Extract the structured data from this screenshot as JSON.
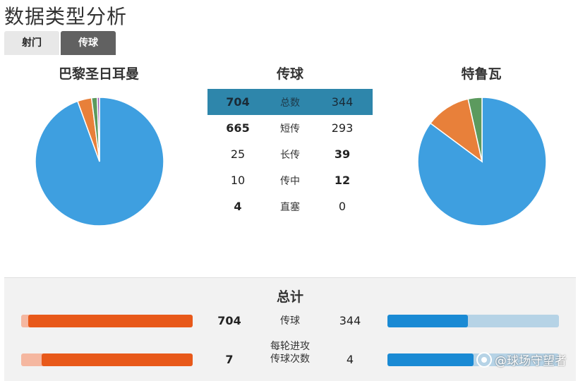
{
  "page": {
    "title": "数据类型分析"
  },
  "tabs": [
    {
      "label": "射门",
      "active": false
    },
    {
      "label": "传球",
      "active": true
    }
  ],
  "teams": {
    "left": "巴黎圣日耳曼",
    "right": "特鲁瓦"
  },
  "section_title": "传球",
  "colors": {
    "short": "#3e9fe0",
    "long": "#e8803a",
    "cross": "#5c9a5e",
    "highlight": "#2e86ab",
    "left_bar": "#e8591a",
    "right_bar": "#1a8ad4"
  },
  "stats": [
    {
      "left": "704",
      "label": "总数",
      "right": "344",
      "bold": "none",
      "highlight": true
    },
    {
      "left": "665",
      "label": "短传",
      "right": "293",
      "bold": "left",
      "highlight": false
    },
    {
      "left": "25",
      "label": "长传",
      "right": "39",
      "bold": "right",
      "highlight": false
    },
    {
      "left": "10",
      "label": "传中",
      "right": "12",
      "bold": "right",
      "highlight": false
    },
    {
      "left": "4",
      "label": "直塞",
      "right": "0",
      "bold": "left",
      "highlight": false
    }
  ],
  "chart_data": [
    {
      "type": "pie",
      "team": "巴黎圣日耳曼",
      "slices": [
        {
          "category": "短传",
          "value": 665
        },
        {
          "category": "长传",
          "value": 25
        },
        {
          "category": "传中",
          "value": 10
        },
        {
          "category": "直塞",
          "value": 4
        }
      ]
    },
    {
      "type": "pie",
      "team": "特鲁瓦",
      "slices": [
        {
          "category": "短传",
          "value": 293
        },
        {
          "category": "长传",
          "value": 39
        },
        {
          "category": "传中",
          "value": 12
        },
        {
          "category": "直塞",
          "value": 0
        }
      ]
    }
  ],
  "summary": {
    "title": "总计",
    "rows": [
      {
        "left": "704",
        "label": "传球",
        "right": "344",
        "left_fraction": 0.96,
        "right_fraction": 0.47
      },
      {
        "left": "7",
        "label": "每轮进攻\n传球次数",
        "right": "4",
        "left_fraction": 0.88,
        "right_fraction": 0.5
      }
    ]
  },
  "watermark": "@球场守望者"
}
